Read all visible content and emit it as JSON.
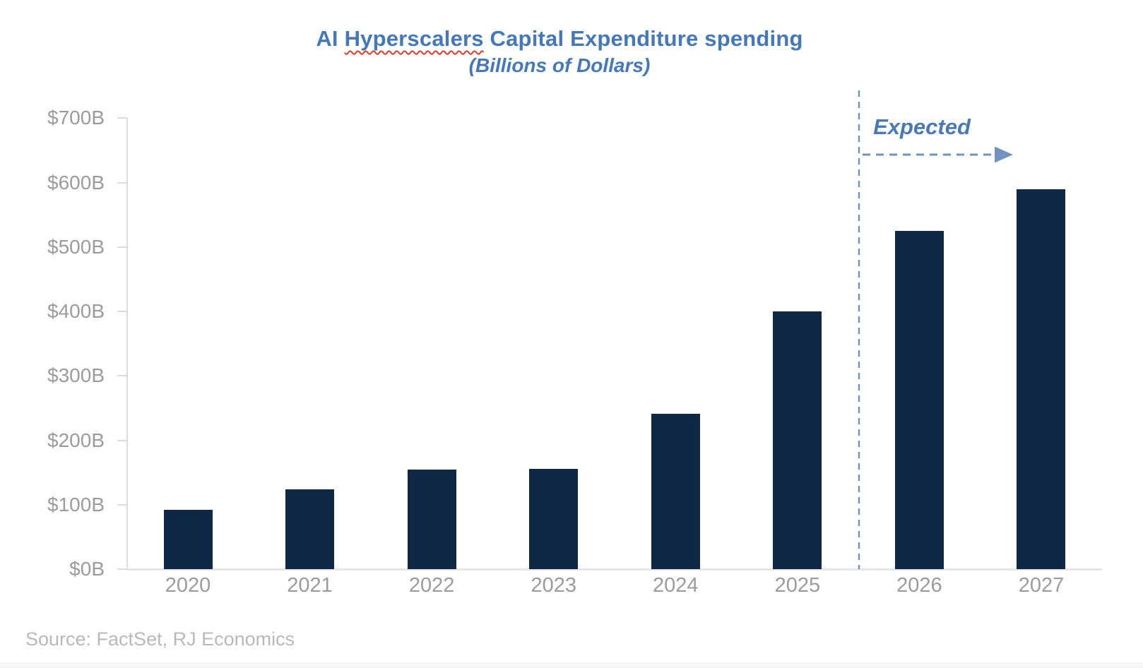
{
  "header": {
    "title_pre": "AI ",
    "title_misspelled": "Hyperscalers",
    "title_post": " Capital Expenditure spending",
    "subtitle": "(Billions of Dollars)",
    "title_color": "#4478b8"
  },
  "annotation": {
    "expected_label": "Expected",
    "text_color": "#4a7ab5",
    "dashed_line_color": "#7292bf"
  },
  "footer": {
    "source": "Source: FactSet, RJ Economics"
  },
  "chart_data": {
    "type": "bar",
    "title": "AI Hyperscalers Capital Expenditure spending",
    "subtitle": "(Billions of Dollars)",
    "categories": [
      "2020",
      "2021",
      "2022",
      "2023",
      "2024",
      "2025",
      "2026",
      "2027"
    ],
    "values": [
      92,
      124,
      154,
      156,
      241,
      400,
      525,
      590
    ],
    "unit": "billions of US dollars",
    "xlabel": "",
    "ylabel": "",
    "ylim": [
      0,
      700
    ],
    "ytick_step": 100,
    "ytick_labels": [
      "$0B",
      "$100B",
      "$200B",
      "$300B",
      "$400B",
      "$500B",
      "$600B",
      "$700B"
    ],
    "grid": false,
    "legend": false,
    "bar_color": "#0f2845",
    "axis_color": "#dcdcdc",
    "tick_label_color": "#9b9b9b",
    "annotation": {
      "text": "Expected",
      "applies_to_categories": [
        "2026",
        "2027"
      ],
      "divider_between": [
        "2025",
        "2026"
      ]
    }
  }
}
